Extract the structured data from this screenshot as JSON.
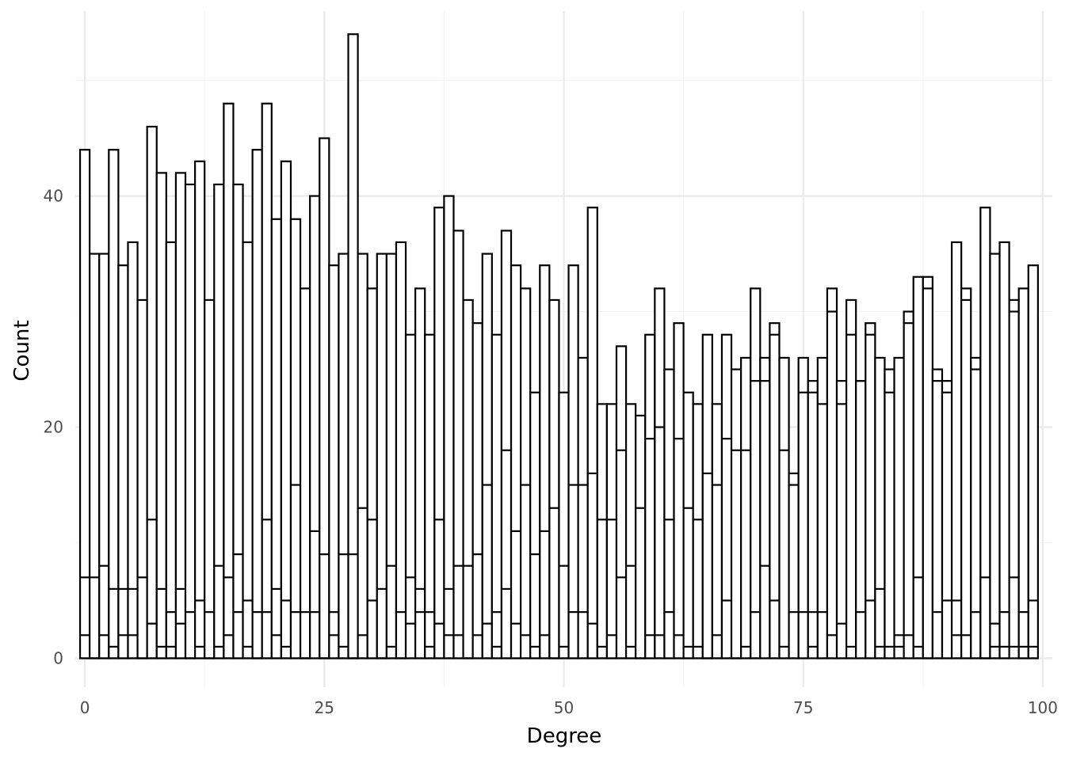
{
  "chart_data": {
    "type": "bar",
    "subtype": "stacked-histogram-outline",
    "title": "",
    "xlabel": "Degree",
    "ylabel": "Count",
    "xlim": [
      -1,
      101
    ],
    "ylim": [
      -2.5,
      56
    ],
    "x_ticks": [
      0,
      25,
      50,
      75,
      100
    ],
    "x_ticks_minor": [
      12.5,
      37.5,
      62.5,
      87.5
    ],
    "y_ticks": [
      0,
      20,
      40
    ],
    "y_ticks_minor": [
      10,
      30,
      50
    ],
    "grid": true,
    "legend": "none",
    "fill_color": "#ffffff",
    "outline_color": "#000000",
    "grid_major_color": "#ebebeb",
    "grid_minor_color": "#f3f3f3",
    "bin_width": 1,
    "degree": [
      0,
      1,
      2,
      3,
      4,
      5,
      6,
      7,
      8,
      9,
      10,
      11,
      12,
      13,
      14,
      15,
      16,
      17,
      18,
      19,
      20,
      21,
      22,
      23,
      24,
      25,
      26,
      27,
      28,
      29,
      30,
      31,
      32,
      33,
      34,
      35,
      36,
      37,
      38,
      39,
      40,
      41,
      42,
      43,
      44,
      45,
      46,
      47,
      48,
      49,
      50,
      51,
      52,
      53,
      54,
      55,
      56,
      57,
      58,
      59,
      60,
      61,
      62,
      63,
      64,
      65,
      66,
      67,
      68,
      69,
      70,
      71,
      72,
      73,
      74,
      75,
      76,
      77,
      78,
      79,
      80,
      81,
      82,
      83,
      84,
      85,
      86,
      87,
      88,
      89,
      90,
      91,
      92,
      93,
      94,
      95,
      96,
      97,
      98,
      99
    ],
    "total": [
      44,
      35,
      35,
      44,
      34,
      36,
      31,
      46,
      42,
      36,
      42,
      41,
      43,
      31,
      41,
      48,
      41,
      36,
      44,
      48,
      38,
      43,
      38,
      32,
      40,
      45,
      34,
      35,
      54,
      35,
      32,
      35,
      35,
      36,
      28,
      32,
      28,
      39,
      40,
      37,
      31,
      29,
      35,
      28,
      37,
      34,
      32,
      23,
      34,
      31,
      23,
      34,
      26,
      39,
      22,
      22,
      27,
      22,
      21,
      28,
      32,
      25,
      29,
      23,
      22,
      28,
      22,
      28,
      25,
      26,
      32,
      26,
      29,
      26,
      16,
      26,
      24,
      26,
      32,
      24,
      31,
      24,
      29,
      26,
      25,
      26,
      30,
      33,
      33,
      25,
      24,
      36,
      32,
      26,
      39,
      35,
      36,
      31,
      32,
      34
    ],
    "inner_boundaries": [
      [
        7,
        2,
        0
      ],
      [
        7,
        0,
        0
      ],
      [
        8,
        2,
        0
      ],
      [
        6,
        1,
        0
      ],
      [
        6,
        2,
        0
      ],
      [
        6,
        2,
        0
      ],
      [
        7,
        0,
        0
      ],
      [
        12,
        3,
        0
      ],
      [
        6,
        1,
        0
      ],
      [
        4,
        1,
        0
      ],
      [
        6,
        3,
        0
      ],
      [
        4,
        0,
        0
      ],
      [
        5,
        1,
        0
      ],
      [
        4,
        0,
        0
      ],
      [
        8,
        1,
        0
      ],
      [
        7,
        2,
        0
      ],
      [
        9,
        4,
        0
      ],
      [
        5,
        1,
        0
      ],
      [
        4,
        0,
        0
      ],
      [
        12,
        4,
        0
      ],
      [
        6,
        2,
        0
      ],
      [
        5,
        1,
        0
      ],
      [
        15,
        4,
        0
      ],
      [
        4,
        0,
        0
      ],
      [
        11,
        4,
        0
      ],
      [
        9,
        0,
        0
      ],
      [
        4,
        2,
        0
      ],
      [
        9,
        1,
        0
      ],
      [
        9,
        0,
        0
      ],
      [
        13,
        2,
        0
      ],
      [
        12,
        5,
        0
      ],
      [
        6,
        0,
        0
      ],
      [
        8,
        1,
        0
      ],
      [
        4,
        0,
        0
      ],
      [
        7,
        3,
        0
      ],
      [
        6,
        4,
        0
      ],
      [
        4,
        1,
        0
      ],
      [
        12,
        3,
        0
      ],
      [
        6,
        2,
        0
      ],
      [
        8,
        2,
        0
      ],
      [
        8,
        0,
        0
      ],
      [
        9,
        2,
        0
      ],
      [
        15,
        3,
        0
      ],
      [
        4,
        1,
        0
      ],
      [
        18,
        6,
        0
      ],
      [
        11,
        3,
        0
      ],
      [
        15,
        2,
        0
      ],
      [
        9,
        1,
        0
      ],
      [
        11,
        2,
        0
      ],
      [
        13,
        0,
        0
      ],
      [
        8,
        1,
        0
      ],
      [
        15,
        4,
        0
      ],
      [
        15,
        4,
        0
      ],
      [
        16,
        3,
        0
      ],
      [
        12,
        1,
        0
      ],
      [
        12,
        2,
        0
      ],
      [
        18,
        7,
        0
      ],
      [
        8,
        1,
        0
      ],
      [
        13,
        0,
        0
      ],
      [
        19,
        2,
        0
      ],
      [
        20,
        2,
        0
      ],
      [
        12,
        4,
        0
      ],
      [
        19,
        2,
        0
      ],
      [
        13,
        1,
        0
      ],
      [
        12,
        1,
        0
      ],
      [
        16,
        0,
        0
      ],
      [
        15,
        2,
        0
      ],
      [
        19,
        5,
        0
      ],
      [
        18,
        0,
        0
      ],
      [
        18,
        1,
        0
      ],
      [
        24,
        4,
        0
      ],
      [
        24,
        8,
        0
      ],
      [
        28,
        5,
        0
      ],
      [
        18,
        1,
        0
      ],
      [
        15,
        4,
        0
      ],
      [
        23,
        4,
        0
      ],
      [
        23,
        4,
        1
      ],
      [
        22,
        4,
        0
      ],
      [
        30,
        2,
        0
      ],
      [
        22,
        3,
        0
      ],
      [
        28,
        1,
        0
      ],
      [
        24,
        4,
        0
      ],
      [
        28,
        5,
        0
      ],
      [
        6,
        1,
        0
      ],
      [
        23,
        1,
        0
      ],
      [
        2,
        1,
        0
      ],
      [
        29,
        2,
        0
      ],
      [
        7,
        1,
        0
      ],
      [
        32,
        0,
        0
      ],
      [
        24,
        4,
        0
      ],
      [
        23,
        5,
        0
      ],
      [
        5,
        2,
        0
      ],
      [
        31,
        2,
        0
      ],
      [
        25,
        4,
        0
      ],
      [
        7,
        0,
        0
      ],
      [
        3,
        1,
        0
      ],
      [
        4,
        1,
        0
      ],
      [
        30,
        7,
        1
      ],
      [
        4,
        1,
        0
      ],
      [
        5,
        1,
        0
      ]
    ]
  }
}
